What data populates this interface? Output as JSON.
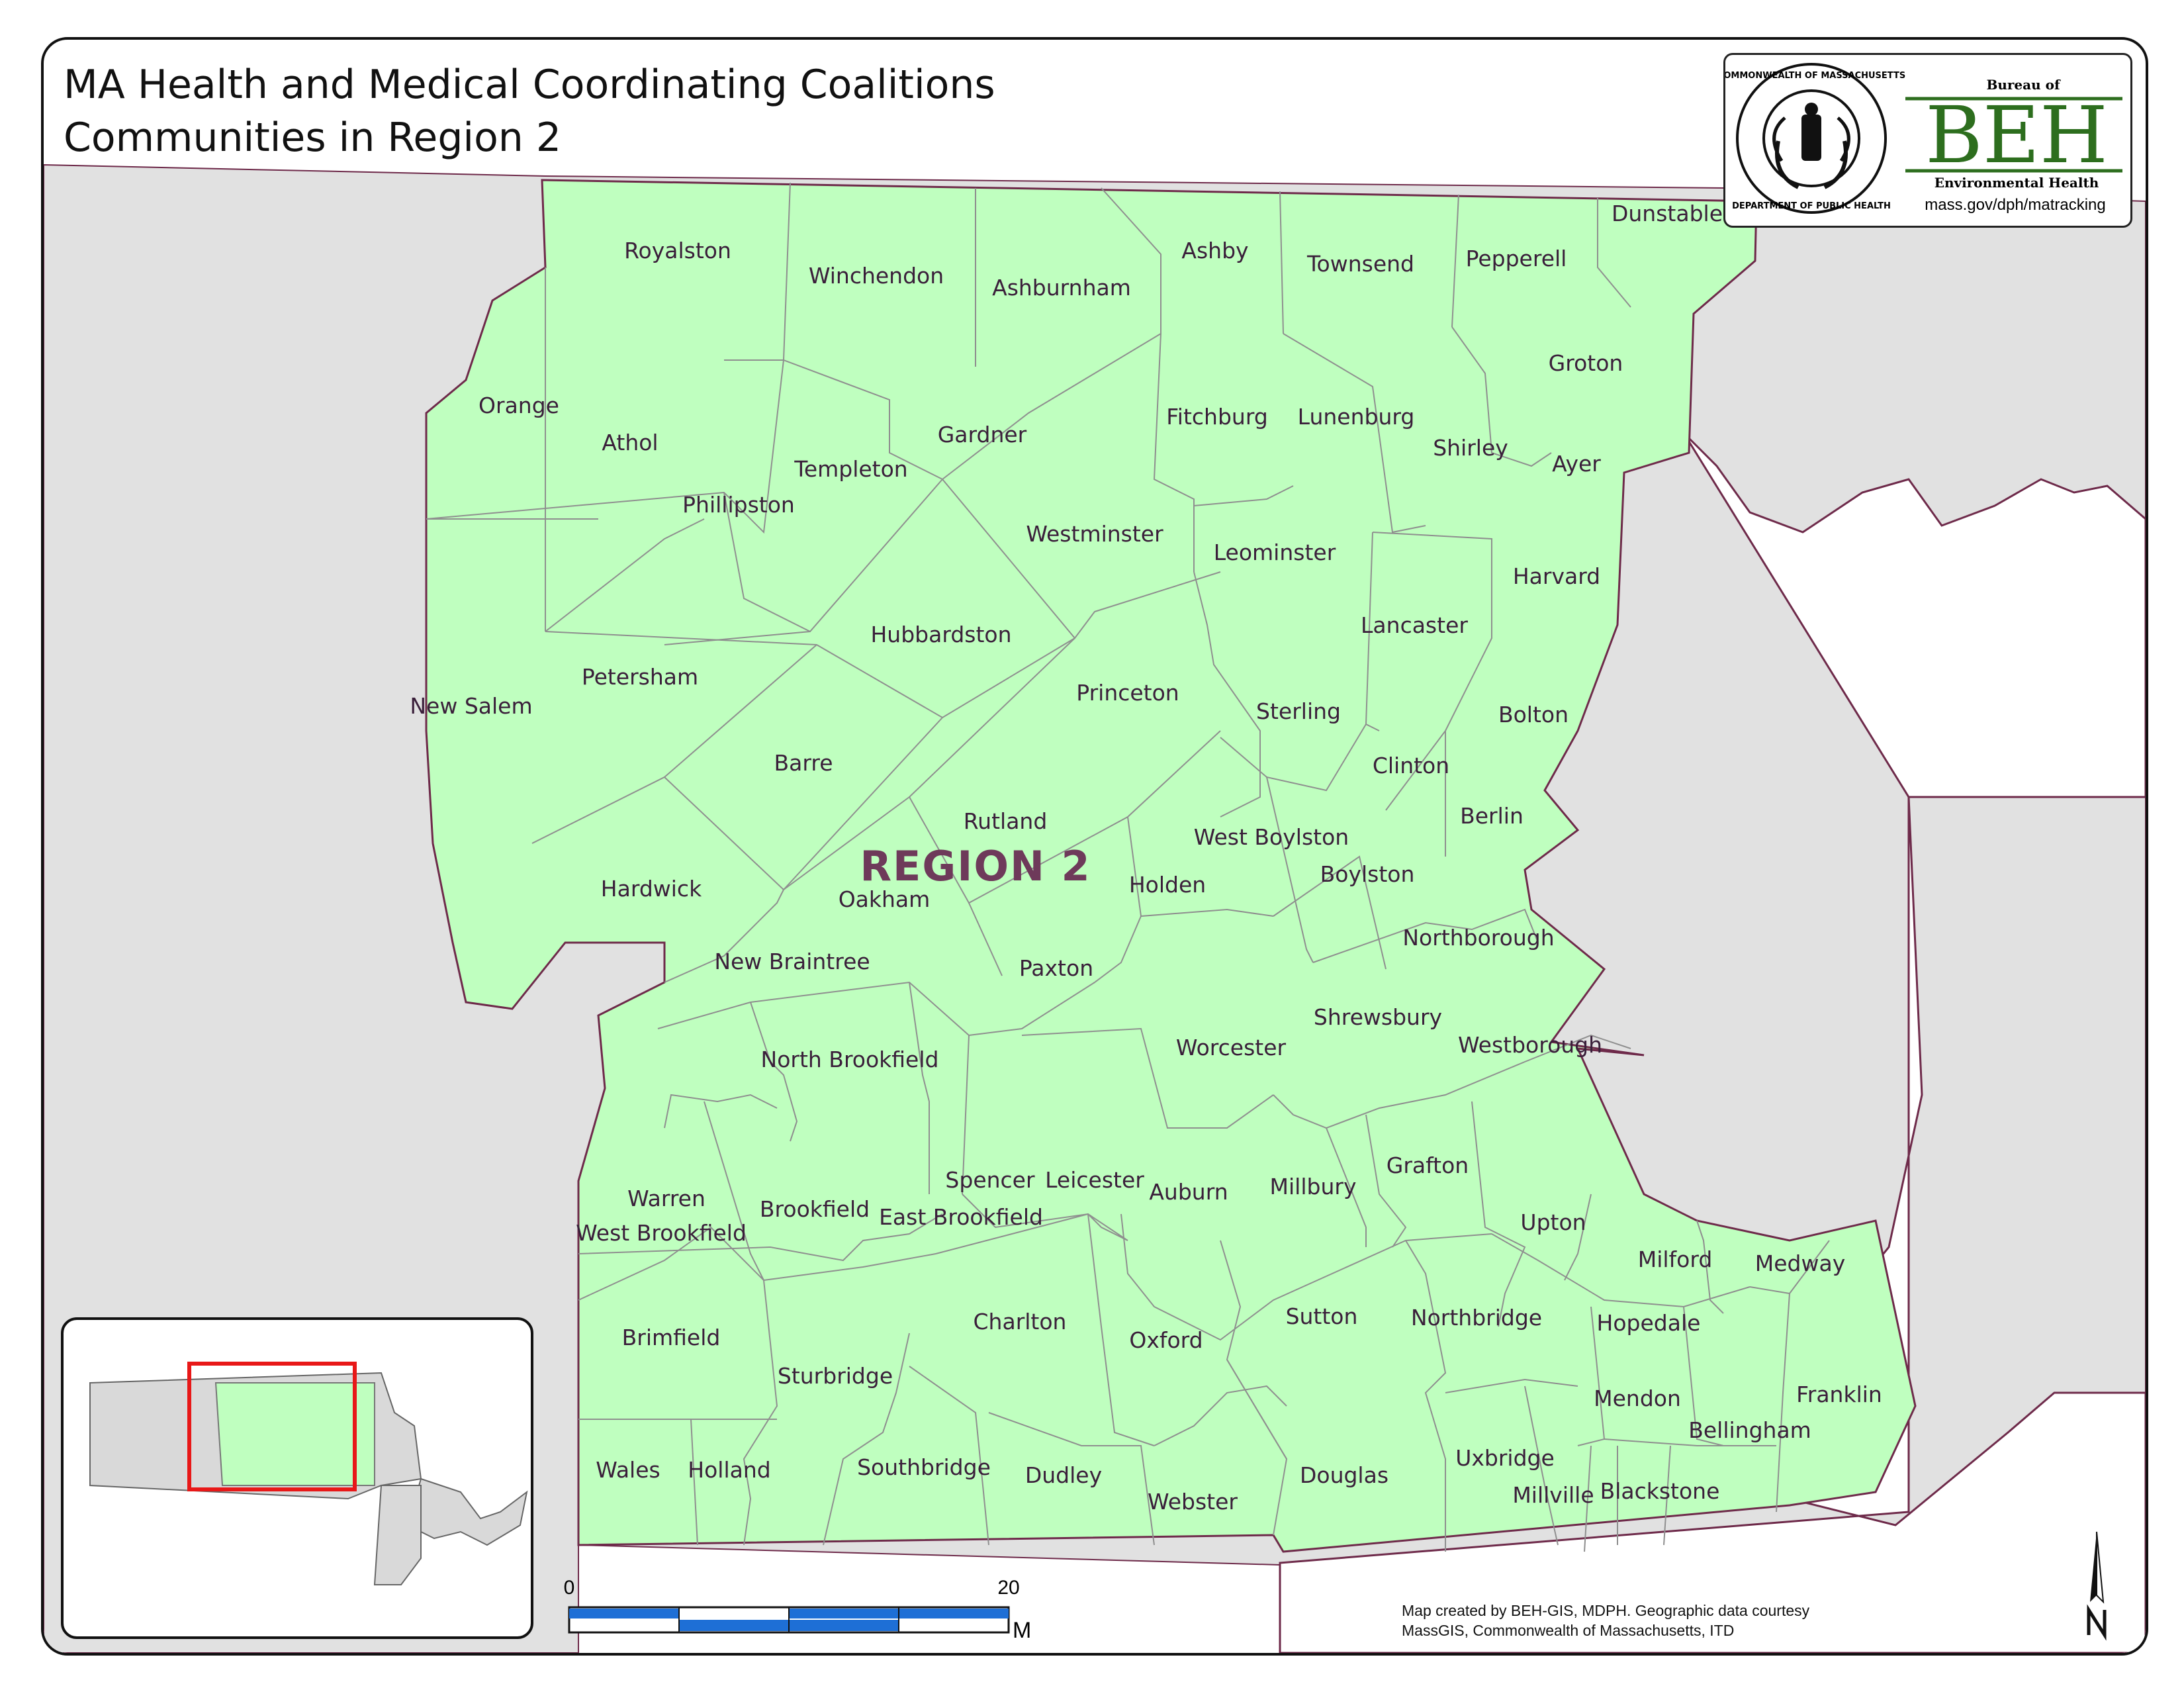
{
  "title": {
    "line1": "MA Health and Medical Coordinating Coalitions",
    "line2": "Communities in Region 2"
  },
  "region_label": "REGION 2",
  "logo": {
    "seal_text_top": "COMMONWEALTH OF MASSACHUSETTS",
    "seal_text_bottom": "DEPARTMENT OF PUBLIC HEALTH",
    "bureau_of": "Bureau of",
    "acronym": "BEH",
    "subtitle": "Environmental Health",
    "url": "mass.gov/dph/matracking"
  },
  "towns": [
    "Royalston",
    "Winchendon",
    "Ashburnham",
    "Ashby",
    "Townsend",
    "Pepperell",
    "Dunstable",
    "Orange",
    "Athol",
    "Templeton",
    "Gardner",
    "Fitchburg",
    "Lunenburg",
    "Shirley",
    "Groton",
    "Ayer",
    "Phillipston",
    "Westminster",
    "Leominster",
    "Harvard",
    "Hubbardston",
    "Lancaster",
    "New Salem",
    "Petersham",
    "Princeton",
    "Sterling",
    "Bolton",
    "Barre",
    "Clinton",
    "Berlin",
    "Rutland",
    "West Boylston",
    "Boylston",
    "Hardwick",
    "Oakham",
    "Holden",
    "Northborough",
    "New Braintree",
    "Paxton",
    "Shrewsbury",
    "Westborough",
    "North Brookfield",
    "Worcester",
    "Warren",
    "West Brookfield",
    "Brookfield",
    "East Brookfield",
    "Spencer",
    "Leicester",
    "Auburn",
    "Millbury",
    "Grafton",
    "Upton",
    "Milford",
    "Medway",
    "Brimfield",
    "Charlton",
    "Oxford",
    "Sutton",
    "Northbridge",
    "Hopedale",
    "Sturbridge",
    "Mendon",
    "Franklin",
    "Bellingham",
    "Wales",
    "Holland",
    "Southbridge",
    "Dudley",
    "Webster",
    "Douglas",
    "Uxbridge",
    "Millville",
    "Blackstone"
  ],
  "scale_bar": {
    "start": "0",
    "end": "20",
    "unit": "Miles"
  },
  "credit": {
    "line1": "Map created by BEH-GIS, MDPH.  Geographic data courtesy",
    "line2": "MassGIS, Commonwealth of Massachusetts, ITD"
  },
  "colors": {
    "region_fill": "#bfffbf",
    "outside_fill": "#e1e1e1",
    "town_border": "#8f8f8f",
    "state_border": "#6e2a4a",
    "region_label": "#6e3a5a",
    "logo_green": "#2d6e1e",
    "scale_blue": "#1e6fd6",
    "inset_frame": "#e81818"
  }
}
